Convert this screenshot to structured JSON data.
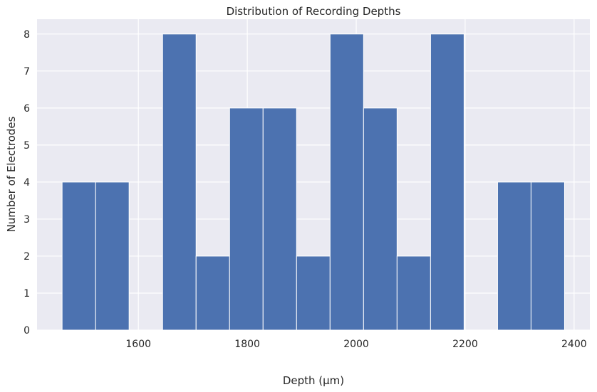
{
  "chart_data": {
    "type": "bar",
    "title": "Distribution of Recording Depths",
    "xlabel": "Depth (µm)",
    "ylabel": "Number of Electrodes",
    "bins": [
      {
        "start": 1460.0,
        "end": 1521.5,
        "count": 4
      },
      {
        "start": 1521.5,
        "end": 1583.0,
        "count": 4
      },
      {
        "start": 1583.0,
        "end": 1644.5,
        "count": 0
      },
      {
        "start": 1644.5,
        "end": 1706.0,
        "count": 8
      },
      {
        "start": 1706.0,
        "end": 1767.5,
        "count": 2
      },
      {
        "start": 1767.5,
        "end": 1829.0,
        "count": 6
      },
      {
        "start": 1829.0,
        "end": 1890.5,
        "count": 6
      },
      {
        "start": 1890.5,
        "end": 1952.0,
        "count": 2
      },
      {
        "start": 1952.0,
        "end": 2013.5,
        "count": 8
      },
      {
        "start": 2013.5,
        "end": 2075.0,
        "count": 6
      },
      {
        "start": 2075.0,
        "end": 2136.5,
        "count": 2
      },
      {
        "start": 2136.5,
        "end": 2198.0,
        "count": 8
      },
      {
        "start": 2198.0,
        "end": 2259.5,
        "count": 0
      },
      {
        "start": 2259.5,
        "end": 2321.0,
        "count": 4
      },
      {
        "start": 2321.0,
        "end": 2382.5,
        "count": 4
      }
    ],
    "xlim": [
      1414,
      2429
    ],
    "ylim": [
      0,
      8.4
    ],
    "xticks": [
      1600,
      1800,
      2000,
      2200,
      2400
    ],
    "yticks": [
      0,
      1,
      2,
      3,
      4,
      5,
      6,
      7,
      8
    ],
    "grid": true,
    "colors": {
      "bar": "#4c72b0",
      "background": "#eaeaf2",
      "grid": "#ffffff",
      "text": "#262626"
    }
  }
}
